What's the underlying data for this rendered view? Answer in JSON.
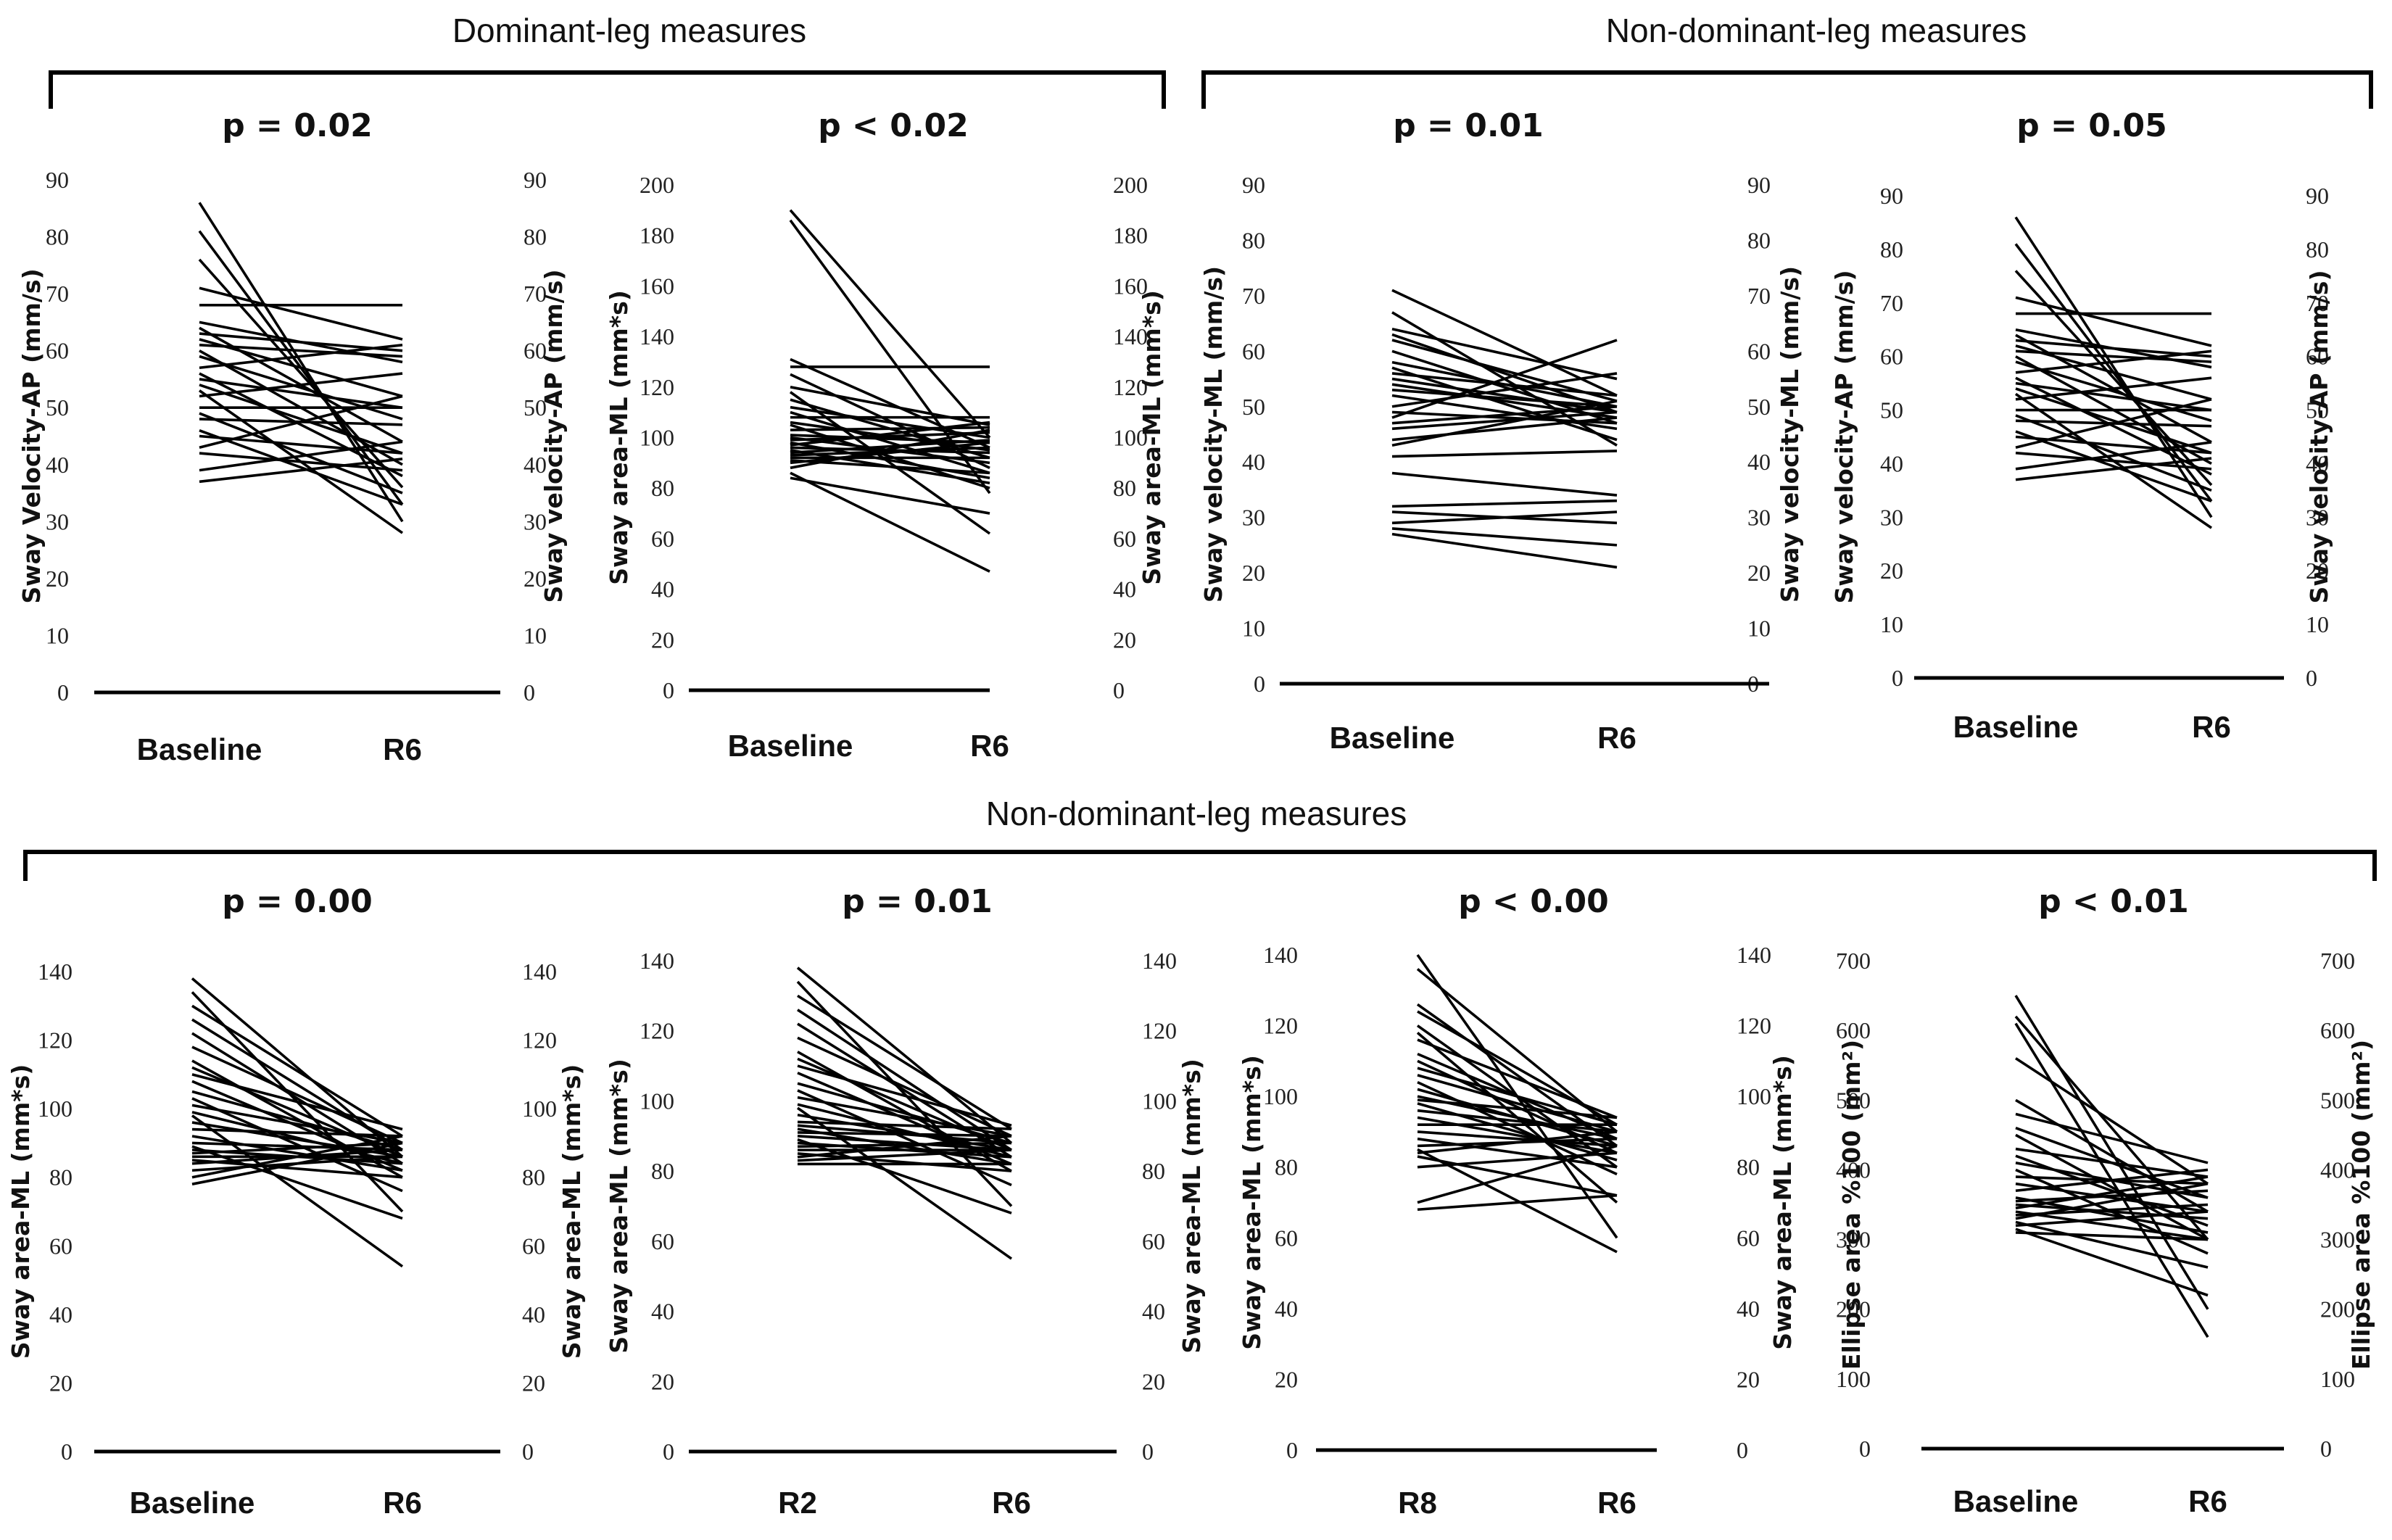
{
  "groups": [
    {
      "title": "Dominant-leg measures"
    },
    {
      "title": "Non-dominant-leg measures"
    },
    {
      "title": "Non-dominant-leg measures"
    }
  ],
  "chart_data": [
    {
      "type": "line",
      "p_label": "p = 0.02",
      "ylabel_left": "Sway Velocity-AP (mm/s)",
      "ylabel_right": "Sway velocity-AP (mm/s)",
      "categories": [
        "Baseline",
        "R6"
      ],
      "ylim": [
        0,
        90
      ],
      "yticks": [
        0,
        10,
        20,
        30,
        40,
        50,
        60,
        70,
        80,
        90
      ],
      "series": [
        [
          86,
          30
        ],
        [
          81,
          33
        ],
        [
          76,
          36
        ],
        [
          71,
          62
        ],
        [
          68,
          68
        ],
        [
          65,
          58
        ],
        [
          64,
          44
        ],
        [
          63,
          60
        ],
        [
          62,
          52
        ],
        [
          61,
          59
        ],
        [
          60,
          40
        ],
        [
          59,
          48
        ],
        [
          57,
          61
        ],
        [
          56,
          38
        ],
        [
          55,
          50
        ],
        [
          54,
          42
        ],
        [
          53,
          28
        ],
        [
          52,
          56
        ],
        [
          50,
          50
        ],
        [
          49,
          35
        ],
        [
          48,
          47
        ],
        [
          46,
          33
        ],
        [
          45,
          42
        ],
        [
          43,
          52
        ],
        [
          42,
          39
        ],
        [
          39,
          44
        ],
        [
          37,
          41
        ]
      ]
    },
    {
      "type": "line",
      "p_label": "p < 0.02",
      "ylabel_left": "Sway area-ML (mm*s)",
      "ylabel_right": "Sway area-ML (mm*s)",
      "categories": [
        "Baseline",
        "R6"
      ],
      "ylim": [
        0,
        200
      ],
      "yticks": [
        0,
        20,
        40,
        60,
        80,
        100,
        120,
        140,
        160,
        180,
        200
      ],
      "series": [
        [
          190,
          100
        ],
        [
          186,
          78
        ],
        [
          131,
          96
        ],
        [
          128,
          128
        ],
        [
          125,
          88
        ],
        [
          120,
          105
        ],
        [
          118,
          62
        ],
        [
          115,
          92
        ],
        [
          112,
          100
        ],
        [
          110,
          86
        ],
        [
          108,
          108
        ],
        [
          106,
          95
        ],
        [
          105,
          80
        ],
        [
          103,
          104
        ],
        [
          101,
          98
        ],
        [
          100,
          90
        ],
        [
          99,
          102
        ],
        [
          98,
          84
        ],
        [
          97,
          106
        ],
        [
          96,
          94
        ],
        [
          95,
          82
        ],
        [
          94,
          99
        ],
        [
          93,
          96
        ],
        [
          92,
          92
        ],
        [
          91,
          86
        ],
        [
          90,
          98
        ],
        [
          88,
          103
        ],
        [
          86,
          47
        ],
        [
          84,
          70
        ]
      ]
    },
    {
      "type": "line",
      "p_label": "p = 0.01",
      "ylabel_left": "Sway velocity-ML (mm/s)",
      "ylabel_right": "Sway velocity-ML (mm/s)",
      "categories": [
        "Baseline",
        "R6"
      ],
      "ylim": [
        0,
        90
      ],
      "yticks": [
        0,
        10,
        20,
        30,
        40,
        50,
        60,
        70,
        80,
        90
      ],
      "series": [
        [
          71,
          52
        ],
        [
          67,
          43
        ],
        [
          64,
          55
        ],
        [
          63,
          49
        ],
        [
          62,
          51
        ],
        [
          60,
          47
        ],
        [
          58,
          50
        ],
        [
          57,
          44
        ],
        [
          56,
          52
        ],
        [
          55,
          49
        ],
        [
          54,
          48
        ],
        [
          53,
          50
        ],
        [
          52,
          46
        ],
        [
          50,
          56
        ],
        [
          49,
          47
        ],
        [
          48,
          62
        ],
        [
          47,
          50
        ],
        [
          46,
          49
        ],
        [
          44,
          48
        ],
        [
          43,
          51
        ],
        [
          41,
          42
        ],
        [
          38,
          34
        ],
        [
          32,
          33
        ],
        [
          31,
          29
        ],
        [
          29,
          31
        ],
        [
          28,
          25
        ],
        [
          27,
          21
        ]
      ]
    },
    {
      "type": "line",
      "p_label": "p = 0.05",
      "ylabel_left": "Sway velocity-AP (mm/s)",
      "ylabel_right": "Sway velocity-AP (mm/s)",
      "categories": [
        "Baseline",
        "R6"
      ],
      "ylim": [
        0,
        90
      ],
      "yticks": [
        0,
        10,
        20,
        30,
        40,
        50,
        60,
        70,
        80,
        90
      ],
      "series": [
        [
          86,
          30
        ],
        [
          81,
          33
        ],
        [
          76,
          36
        ],
        [
          71,
          62
        ],
        [
          68,
          68
        ],
        [
          65,
          58
        ],
        [
          64,
          44
        ],
        [
          63,
          60
        ],
        [
          62,
          52
        ],
        [
          61,
          59
        ],
        [
          60,
          40
        ],
        [
          59,
          48
        ],
        [
          57,
          61
        ],
        [
          56,
          38
        ],
        [
          55,
          50
        ],
        [
          54,
          42
        ],
        [
          53,
          28
        ],
        [
          52,
          56
        ],
        [
          50,
          50
        ],
        [
          49,
          35
        ],
        [
          48,
          47
        ],
        [
          46,
          33
        ],
        [
          45,
          42
        ],
        [
          43,
          52
        ],
        [
          42,
          39
        ],
        [
          39,
          44
        ],
        [
          37,
          41
        ]
      ]
    },
    {
      "type": "line",
      "p_label": "p = 0.00",
      "ylabel_left": "Sway area-ML (mm*s)",
      "ylabel_right": "Sway area-ML (mm*s)",
      "categories": [
        "Baseline",
        "R6"
      ],
      "ylim": [
        0,
        140
      ],
      "yticks": [
        0,
        20,
        40,
        60,
        80,
        100,
        120,
        140
      ],
      "series": [
        [
          138,
          86
        ],
        [
          134,
          70
        ],
        [
          130,
          92
        ],
        [
          126,
          88
        ],
        [
          122,
          84
        ],
        [
          118,
          90
        ],
        [
          114,
          80
        ],
        [
          112,
          86
        ],
        [
          110,
          94
        ],
        [
          108,
          82
        ],
        [
          105,
          88
        ],
        [
          103,
          76
        ],
        [
          101,
          90
        ],
        [
          99,
          84
        ],
        [
          98,
          54
        ],
        [
          96,
          86
        ],
        [
          94,
          92
        ],
        [
          92,
          82
        ],
        [
          90,
          88
        ],
        [
          89,
          68
        ],
        [
          88,
          84
        ],
        [
          87,
          90
        ],
        [
          86,
          86
        ],
        [
          85,
          80
        ],
        [
          84,
          88
        ],
        [
          82,
          86
        ],
        [
          80,
          92
        ],
        [
          78,
          90
        ]
      ]
    },
    {
      "type": "line",
      "p_label": "p = 0.01",
      "ylabel_left": "Sway area-ML (mm*s)",
      "ylabel_right": "Sway area-ML (mm*s)",
      "categories": [
        "R2",
        "R6"
      ],
      "ylim": [
        0,
        140
      ],
      "yticks": [
        0,
        20,
        40,
        60,
        80,
        100,
        120,
        140
      ],
      "series": [
        [
          138,
          88
        ],
        [
          134,
          70
        ],
        [
          130,
          92
        ],
        [
          126,
          86
        ],
        [
          122,
          84
        ],
        [
          118,
          90
        ],
        [
          114,
          80
        ],
        [
          112,
          86
        ],
        [
          110,
          93
        ],
        [
          108,
          82
        ],
        [
          105,
          88
        ],
        [
          103,
          76
        ],
        [
          101,
          90
        ],
        [
          99,
          84
        ],
        [
          98,
          55
        ],
        [
          96,
          86
        ],
        [
          94,
          92
        ],
        [
          93,
          88
        ],
        [
          92,
          82
        ],
        [
          91,
          90
        ],
        [
          90,
          86
        ],
        [
          89,
          68
        ],
        [
          88,
          84
        ],
        [
          87,
          88
        ],
        [
          86,
          86
        ],
        [
          85,
          80
        ],
        [
          84,
          90
        ],
        [
          83,
          86
        ],
        [
          82,
          82
        ]
      ]
    },
    {
      "type": "line",
      "p_label": "p < 0.00",
      "ylabel_left": "Sway area-ML (mm*s)",
      "ylabel_right": "Sway area-ML (mm*s)",
      "categories": [
        "R8",
        "R6"
      ],
      "ylim": [
        0,
        140
      ],
      "yticks": [
        0,
        20,
        40,
        60,
        80,
        100,
        120,
        140
      ],
      "series": [
        [
          140,
          60
        ],
        [
          136,
          90
        ],
        [
          126,
          86
        ],
        [
          124,
          92
        ],
        [
          120,
          80
        ],
        [
          118,
          70
        ],
        [
          116,
          94
        ],
        [
          112,
          88
        ],
        [
          110,
          84
        ],
        [
          108,
          92
        ],
        [
          106,
          90
        ],
        [
          104,
          78
        ],
        [
          102,
          86
        ],
        [
          100,
          88
        ],
        [
          99,
          94
        ],
        [
          98,
          82
        ],
        [
          96,
          90
        ],
        [
          94,
          84
        ],
        [
          92,
          92
        ],
        [
          90,
          86
        ],
        [
          88,
          80
        ],
        [
          86,
          88
        ],
        [
          85,
          56
        ],
        [
          84,
          90
        ],
        [
          83,
          72
        ],
        [
          80,
          84
        ],
        [
          70,
          86
        ],
        [
          68,
          72
        ]
      ]
    },
    {
      "type": "line",
      "p_label": "p < 0.01",
      "ylabel_left": "Ellipse area %100 (mm²)",
      "ylabel_right": "Ellipse area %100 (mm²)",
      "categories": [
        "Baseline",
        "R6"
      ],
      "ylim": [
        0,
        700
      ],
      "yticks": [
        0,
        100,
        200,
        300,
        400,
        500,
        600,
        700
      ],
      "series": [
        [
          650,
          200
        ],
        [
          620,
          300
        ],
        [
          610,
          160
        ],
        [
          560,
          380
        ],
        [
          500,
          340
        ],
        [
          480,
          410
        ],
        [
          460,
          360
        ],
        [
          450,
          300
        ],
        [
          430,
          390
        ],
        [
          420,
          320
        ],
        [
          410,
          360
        ],
        [
          400,
          280
        ],
        [
          390,
          380
        ],
        [
          380,
          340
        ],
        [
          370,
          400
        ],
        [
          360,
          310
        ],
        [
          355,
          370
        ],
        [
          350,
          330
        ],
        [
          345,
          390
        ],
        [
          340,
          300
        ],
        [
          335,
          350
        ],
        [
          330,
          380
        ],
        [
          325,
          260
        ],
        [
          320,
          340
        ],
        [
          315,
          220
        ],
        [
          310,
          300
        ]
      ]
    }
  ]
}
